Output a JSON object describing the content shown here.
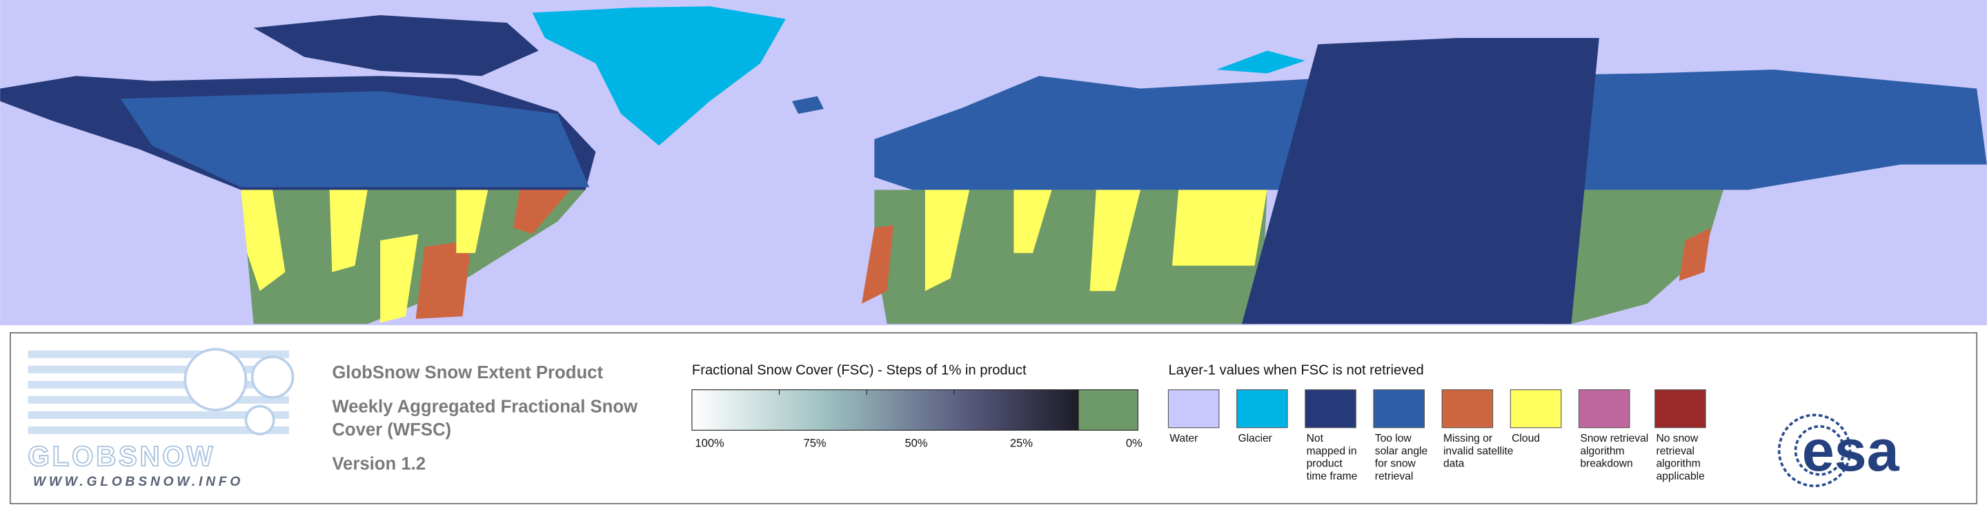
{
  "logo": {
    "name": "GLOBSNOW",
    "url": "WWW.GLOBSNOW.INFO"
  },
  "product": {
    "title": "GlobSnow Snow Extent Product",
    "subtitle_lines": [
      "Weekly Aggregated Fractional Snow",
      "Cover (WFSC)"
    ],
    "version": "Version 1.2"
  },
  "fsc_legend": {
    "title": "Fractional Snow Cover (FSC) - Steps of 1% in product",
    "ticks": [
      "100%",
      "75%",
      "50%",
      "25%",
      "0%"
    ],
    "snow_free_color": "#6e9a6a"
  },
  "layer1_legend": {
    "title": "Layer-1 values when FSC is not retrieved",
    "items": [
      {
        "label_lines": [
          "Water"
        ],
        "color": "#c8c8ff"
      },
      {
        "label_lines": [
          "Glacier"
        ],
        "color": "#00b4e6"
      },
      {
        "label_lines": [
          "Not",
          "mapped in",
          "product",
          "time frame"
        ],
        "color": "#263a7a"
      },
      {
        "label_lines": [
          "Too low",
          "solar angle",
          "for snow",
          "retrieval"
        ],
        "color": "#2e5ea8"
      },
      {
        "label_lines": [
          "Missing or",
          "invalid satellite",
          "data"
        ],
        "color": "#cd6640"
      },
      {
        "label_lines": [
          "Cloud"
        ],
        "color": "#ffff60"
      },
      {
        "label_lines": [
          "Snow retrieval",
          "algorithm",
          "breakdown"
        ],
        "color": "#c0669e"
      },
      {
        "label_lines": [
          "No snow",
          "retrieval",
          "algorithm",
          "applicable"
        ],
        "color": "#9a2a2a"
      }
    ]
  },
  "esa_logo": "esa"
}
